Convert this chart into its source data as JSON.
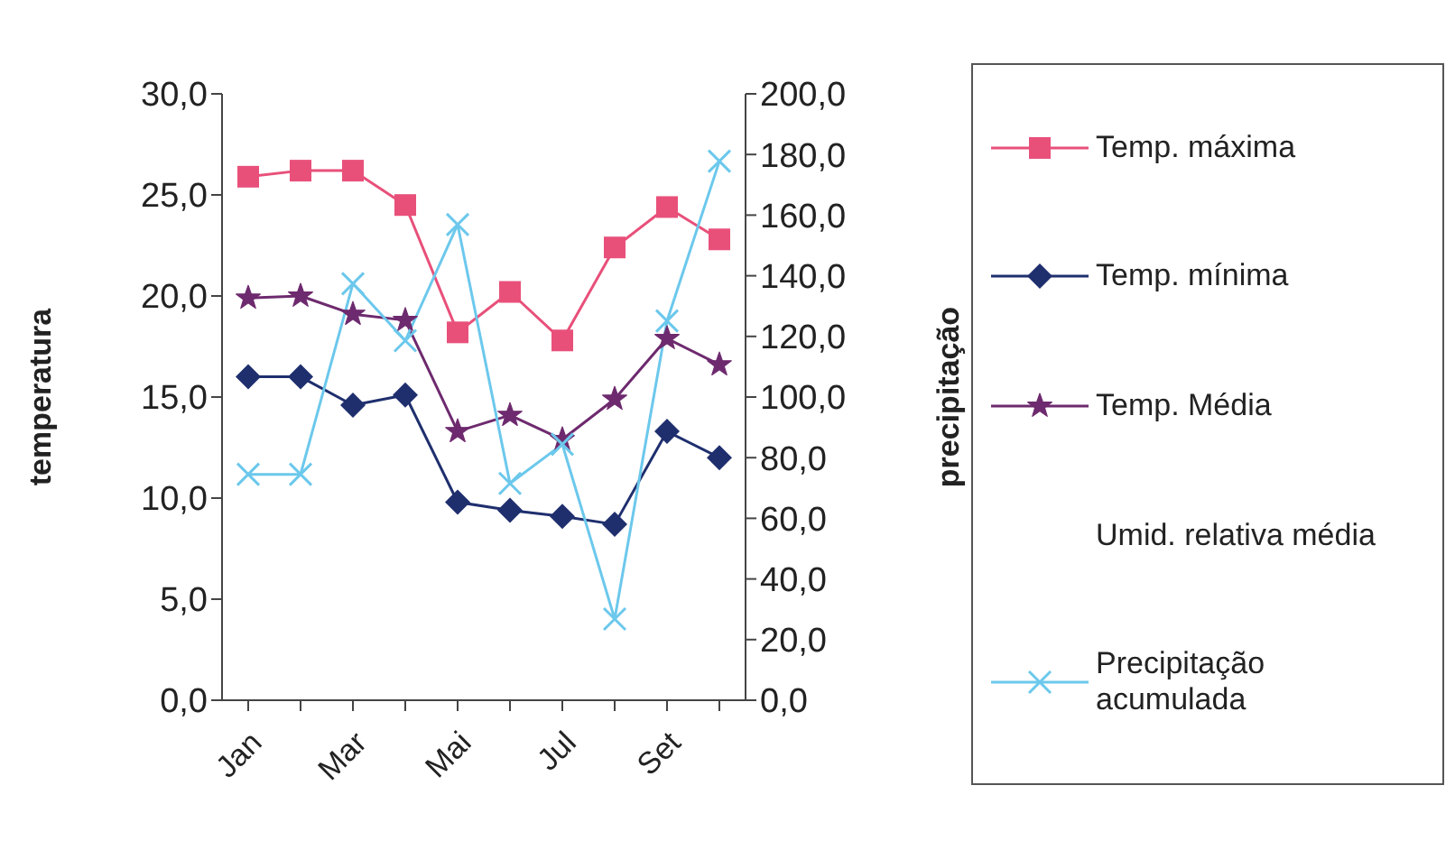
{
  "chart_data": {
    "type": "line",
    "categories": [
      "Jan",
      null,
      "Mar",
      null,
      "Mai",
      null,
      "Jul",
      null,
      "Set",
      null
    ],
    "ylabel": "temperatura",
    "y2label": "precipitação",
    "ylim": [
      0,
      30
    ],
    "yticks": [
      {
        "value": 0,
        "label": "0,0"
      },
      {
        "value": 5,
        "label": "5,0"
      },
      {
        "value": 10,
        "label": "10,0"
      },
      {
        "value": 15,
        "label": "15,0"
      },
      {
        "value": 20,
        "label": "20,0"
      },
      {
        "value": 25,
        "label": "25,0"
      },
      {
        "value": 30,
        "label": "30,0"
      }
    ],
    "y2lim": [
      0,
      200
    ],
    "y2ticks": [
      {
        "value": 0,
        "label": "0,0"
      },
      {
        "value": 20,
        "label": "20,0"
      },
      {
        "value": 40,
        "label": "40,0"
      },
      {
        "value": 60,
        "label": "60,0"
      },
      {
        "value": 80,
        "label": "80,0"
      },
      {
        "value": 100,
        "label": "100,0"
      },
      {
        "value": 120,
        "label": "120,0"
      },
      {
        "value": 140,
        "label": "140,0"
      },
      {
        "value": 160,
        "label": "160,0"
      },
      {
        "value": 180,
        "label": "180,0"
      },
      {
        "value": 200,
        "label": "200,0"
      }
    ],
    "legend": "right",
    "series": [
      {
        "name": "Temp. máxima",
        "color": "#e8507a",
        "marker": "square",
        "values": [
          25.9,
          26.2,
          26.2,
          24.5,
          18.2,
          20.2,
          17.8,
          22.4,
          24.4,
          22.8
        ]
      },
      {
        "name": "Temp. mínima",
        "color": "#1f2f6e",
        "marker": "diamond",
        "values": [
          16.0,
          16.0,
          14.6,
          15.1,
          9.8,
          9.4,
          9.1,
          8.7,
          13.3,
          12.0
        ]
      },
      {
        "name": "Temp. Média",
        "color": "#6e2a6e",
        "marker": "star",
        "values": [
          19.9,
          20.0,
          19.1,
          18.8,
          13.3,
          14.1,
          12.9,
          14.9,
          17.9,
          16.6
        ]
      },
      {
        "name": "Umid. relativa média",
        "marker": "none",
        "values": [
          null,
          null,
          null,
          null,
          null,
          null,
          null,
          null,
          null,
          null
        ]
      },
      {
        "name": "Precipitação acumulada",
        "color": "#6cc8ec",
        "marker": "cross",
        "axis": "y2",
        "values": [
          74.5,
          74.5,
          137.4,
          118.6,
          156.9,
          71.5,
          84.4,
          26.8,
          125.1,
          177.8
        ]
      }
    ]
  }
}
